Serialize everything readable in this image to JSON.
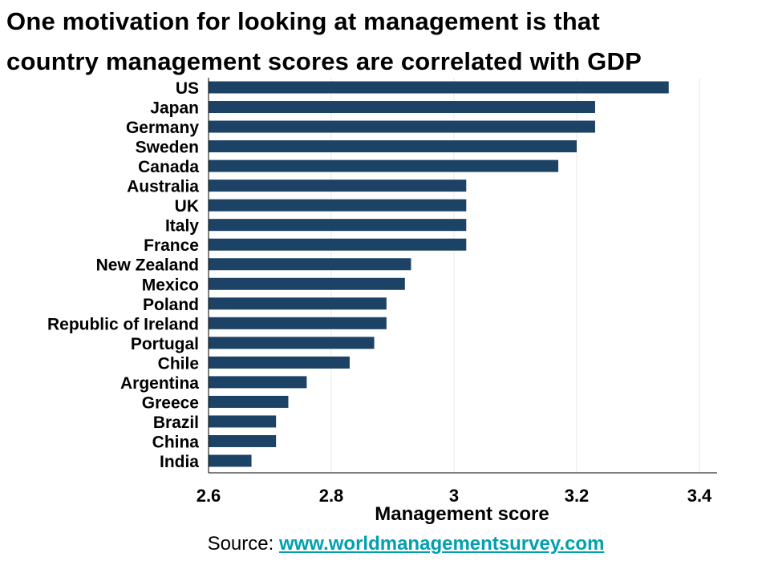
{
  "title": {
    "line1": "One motivation for looking at management is that",
    "line2": "country management scores are correlated with GDP"
  },
  "source": {
    "label": "Source:",
    "link_text": "www.worldmanagementsurvey.com"
  },
  "colors": {
    "bar": "#1c4266",
    "link": "#00a0b0",
    "grid": "#e8e8e8",
    "axis": "#000000"
  },
  "chart_data": {
    "type": "bar",
    "orientation": "horizontal",
    "xlabel": "Management score",
    "ylabel": "",
    "xlim": [
      2.6,
      3.4
    ],
    "xticks": [
      "2.6",
      "2.8",
      "3",
      "3.2",
      "3.4"
    ],
    "grid": "vertical",
    "categories": [
      "US",
      "Japan",
      "Germany",
      "Sweden",
      "Canada",
      "Australia",
      "UK",
      "Italy",
      "France",
      "New Zealand",
      "Mexico",
      "Poland",
      "Republic of Ireland",
      "Portugal",
      "Chile",
      "Argentina",
      "Greece",
      "Brazil",
      "China",
      "India"
    ],
    "values": [
      3.35,
      3.23,
      3.23,
      3.2,
      3.17,
      3.02,
      3.02,
      3.02,
      3.02,
      2.93,
      2.92,
      2.89,
      2.89,
      2.87,
      2.83,
      2.76,
      2.73,
      2.71,
      2.71,
      2.67
    ]
  }
}
